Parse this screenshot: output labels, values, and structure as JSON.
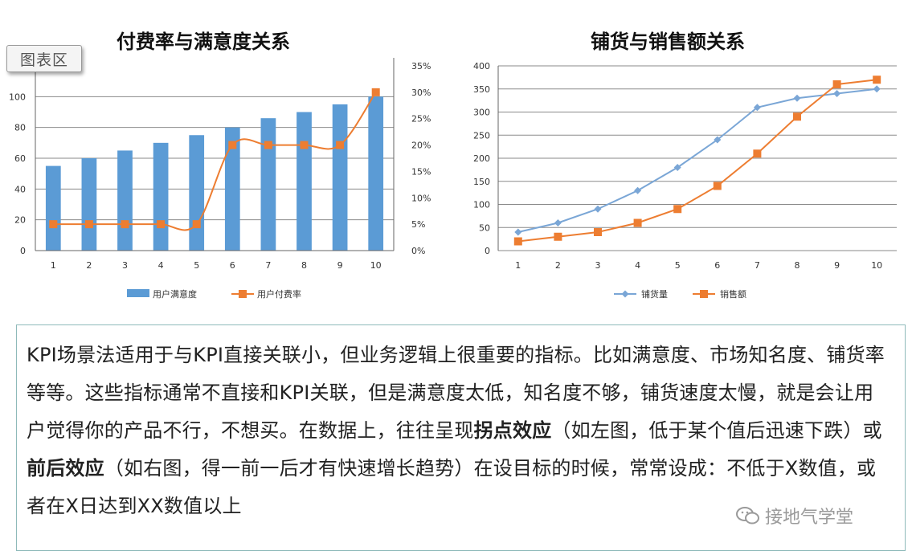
{
  "chart_data": [
    {
      "type": "bar",
      "title": "付费率与满意度关系",
      "categories": [
        "1",
        "2",
        "3",
        "4",
        "5",
        "6",
        "7",
        "8",
        "9",
        "10"
      ],
      "ylim": [
        0,
        120
      ],
      "y_ticks": [
        "0",
        "20",
        "40",
        "60",
        "80",
        "100"
      ],
      "y2lim": [
        0,
        0.35
      ],
      "y2_ticks": [
        "0%",
        "5%",
        "10%",
        "15%",
        "20%",
        "25%",
        "30%",
        "35%"
      ],
      "series": [
        {
          "name": "用户满意度",
          "kind": "bar",
          "axis": "left",
          "values": [
            55,
            60,
            65,
            70,
            75,
            80,
            86,
            90,
            95,
            100
          ],
          "color": "#5b9bd5"
        },
        {
          "name": "用户付费率",
          "kind": "line",
          "axis": "right",
          "values": [
            0.05,
            0.05,
            0.05,
            0.05,
            0.05,
            0.2,
            0.2,
            0.2,
            0.2,
            0.3
          ],
          "color": "#ed7d31"
        }
      ],
      "grid": true,
      "legend": "bottom"
    },
    {
      "type": "line",
      "title": "铺货与销售额关系",
      "categories": [
        "1",
        "2",
        "3",
        "4",
        "5",
        "6",
        "7",
        "8",
        "9",
        "10"
      ],
      "ylim": [
        0,
        400
      ],
      "y_ticks": [
        "0",
        "50",
        "100",
        "150",
        "200",
        "250",
        "300",
        "350",
        "400"
      ],
      "series": [
        {
          "name": "铺货量",
          "values": [
            40,
            60,
            90,
            130,
            180,
            240,
            310,
            330,
            340,
            350
          ],
          "color": "#7aa6d6",
          "marker": "diamond"
        },
        {
          "name": "销售额",
          "values": [
            20,
            30,
            40,
            60,
            90,
            140,
            210,
            290,
            360,
            370
          ],
          "color": "#ed7d31",
          "marker": "square"
        }
      ],
      "grid": true,
      "legend": "bottom"
    }
  ],
  "ui": {
    "chart_area_label": "图表区"
  },
  "text": {
    "p1": "KPI场景法适用于与KPI直接关联小，但业务逻辑上很重要的指标。比如满意度、市场知名度、铺货率等等。这些指标通常不直接和KPI关联，但是满意度太低，知名度不够，铺货速度太慢，就是会让用户觉得你的产品不行，不想买。在数据上，往往呈现",
    "b1": "拐点效应",
    "p2": "（如左图，低于某个值后迅速下跌）或",
    "b2": "前后效应",
    "p3": "（如右图，得一前一后才有快速增长趋势）在设目标的时候，常常设成：不低于X数值，或者在X日达到XX数值以上"
  },
  "watermark": {
    "text": "接地气学堂"
  }
}
